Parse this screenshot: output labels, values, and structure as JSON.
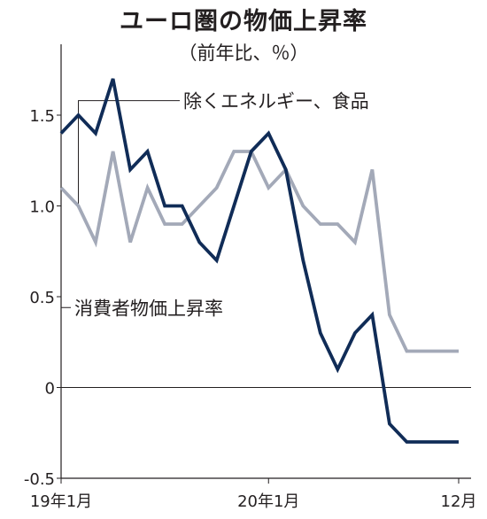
{
  "chart_data": {
    "type": "line",
    "title": "ユーロ圏の物価上昇率",
    "subtitle": "（前年比、％）",
    "x_tick_labels": [
      "19年1月",
      "20年1月",
      "12月"
    ],
    "x": [
      "19年1月",
      "19年2月",
      "19年3月",
      "19年4月",
      "19年5月",
      "19年6月",
      "19年7月",
      "19年8月",
      "19年9月",
      "19年10月",
      "19年11月",
      "19年12月",
      "20年1月",
      "20年2月",
      "20年3月",
      "20年4月",
      "20年5月",
      "20年6月",
      "20年7月",
      "20年8月",
      "20年9月",
      "20年10月",
      "20年11月",
      "20年12月"
    ],
    "y_ticks": [
      -0.5,
      0,
      0.5,
      1.0,
      1.5
    ],
    "y_tick_labels": [
      "-0.5",
      "0",
      "0.5",
      "1.0",
      "1.5"
    ],
    "ylim": [
      -0.5,
      1.8
    ],
    "grid": false,
    "series": [
      {
        "name": "消費者物価上昇率",
        "color": "#102c57",
        "values": [
          1.4,
          1.5,
          1.4,
          1.7,
          1.2,
          1.3,
          1.0,
          1.0,
          0.8,
          0.7,
          1.0,
          1.3,
          1.4,
          1.2,
          0.7,
          0.3,
          0.1,
          0.3,
          0.4,
          -0.2,
          -0.3,
          -0.3,
          -0.3,
          -0.3
        ]
      },
      {
        "name": "除くエネルギー、食品",
        "color": "#a3a9b8",
        "values": [
          1.1,
          1.0,
          0.8,
          1.3,
          0.8,
          1.1,
          0.9,
          0.9,
          1.0,
          1.1,
          1.3,
          1.3,
          1.1,
          1.2,
          1.0,
          0.9,
          0.9,
          0.8,
          1.2,
          0.4,
          0.2,
          0.2,
          0.2,
          0.2
        ]
      }
    ]
  }
}
